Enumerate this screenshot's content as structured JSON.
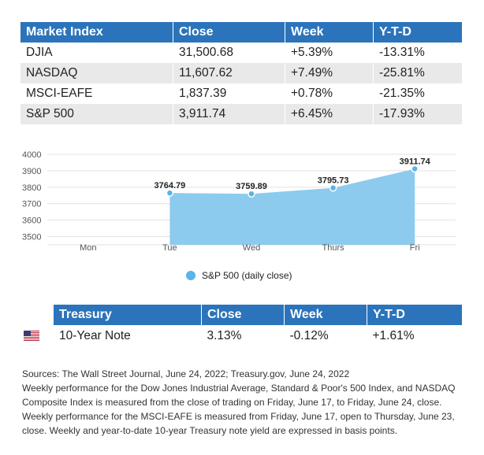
{
  "market_table": {
    "headers": [
      "Market Index",
      "Close",
      "Week",
      "Y-T-D"
    ],
    "rows": [
      [
        "DJIA",
        "31,500.68",
        "+5.39%",
        "-13.31%"
      ],
      [
        "NASDAQ",
        "11,607.62",
        "+7.49%",
        "-25.81%"
      ],
      [
        "MSCI-EAFE",
        "1,837.39",
        "+0.78%",
        "-21.35%"
      ],
      [
        "S&P 500",
        "3,911.74",
        "+6.45%",
        "-17.93%"
      ]
    ]
  },
  "chart_data": {
    "type": "area",
    "categories": [
      "Mon",
      "Tue",
      "Wed",
      "Thurs",
      "Fri"
    ],
    "series": [
      {
        "name": "S&P 500 (daily close)",
        "values": [
          null,
          3764.79,
          3759.89,
          3795.73,
          3911.74
        ]
      }
    ],
    "data_labels": [
      "",
      "3764.79",
      "3759.89",
      "3795.73",
      "3911.74"
    ],
    "yticks": [
      4000,
      3900,
      3800,
      3700,
      3600,
      3500
    ],
    "ylim": [
      3450,
      4000
    ],
    "grid": true,
    "legend": "bottom-center",
    "colors": {
      "area": "#8ccbee",
      "point": "#5ab4e5",
      "grid": "#e3e3e3"
    }
  },
  "treasury_table": {
    "headers": [
      "Treasury",
      "Close",
      "Week",
      "Y-T-D"
    ],
    "flag_icon": "us-flag-icon",
    "rows": [
      [
        "10-Year Note",
        "3.13%",
        "-0.12%",
        "+1.61%"
      ]
    ]
  },
  "sources": {
    "line1": "Sources: The Wall Street Journal, June 24, 2022; Treasury.gov, June 24, 2022",
    "line2": "Weekly performance for the Dow Jones Industrial Average, Standard & Poor's 500 Index, and NASDAQ Composite Index is measured from the close of trading on Friday, June 17, to Friday, June 24, close. Weekly performance for the MSCI-EAFE is measured from Friday, June 17, open to Thursday, June 23, close. Weekly and year-to-date 10-year Treasury note yield are expressed in basis points."
  },
  "colors": {
    "header_blue": "#2b74bb",
    "stripe_gray": "#e9e9e9"
  }
}
